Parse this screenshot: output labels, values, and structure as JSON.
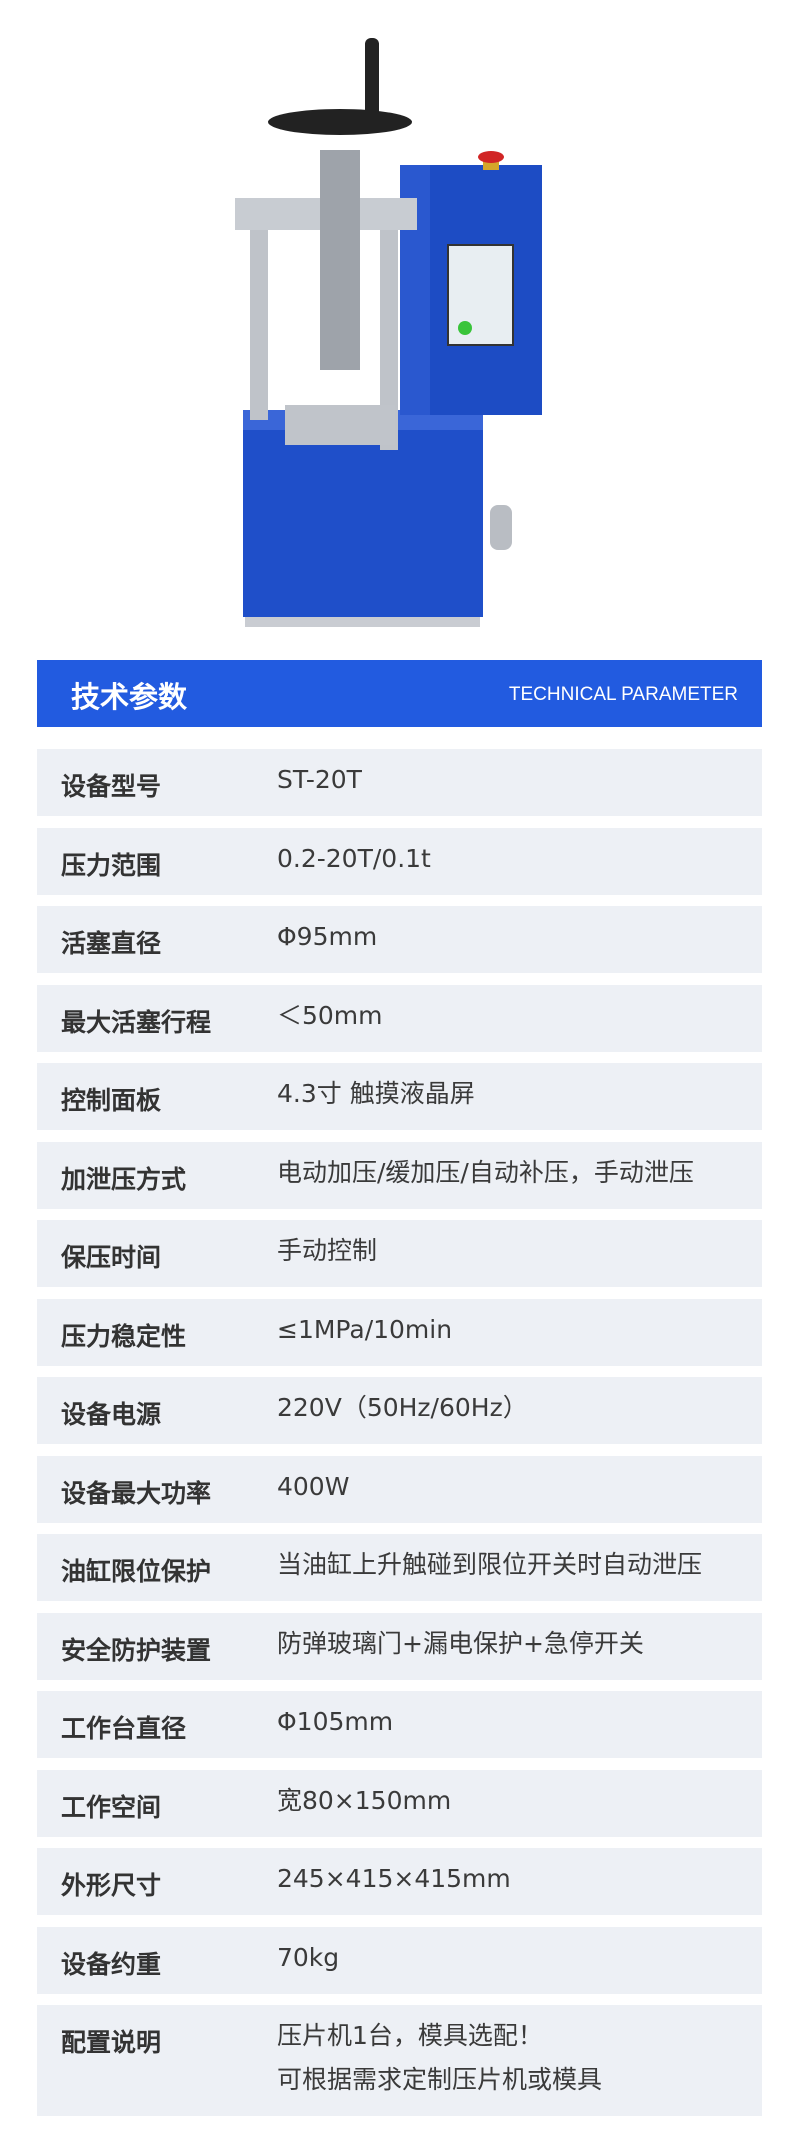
{
  "header": {
    "title": "技术参数",
    "subtitle": "TECHNICAL PARAMETER"
  },
  "colors": {
    "accent": "#225be0",
    "row_bg": "#edf0f5",
    "machine_blue": "#1f4fc9"
  },
  "params": [
    {
      "label": "设备型号",
      "value": "ST-20T"
    },
    {
      "label": "压力范围",
      "value": "0.2-20T/0.1t"
    },
    {
      "label": "活塞直径",
      "value": "Φ95mm"
    },
    {
      "label": "最大活塞行程",
      "value": "＜50mm"
    },
    {
      "label": "控制面板",
      "value": "4.3寸 触摸液晶屏"
    },
    {
      "label": "加泄压方式",
      "value": "电动加压/缓加压/自动补压，手动泄压"
    },
    {
      "label": "保压时间",
      "value": " 手动控制"
    },
    {
      "label": "压力稳定性",
      "value": "≤1MPa/10min"
    },
    {
      "label": "设备电源",
      "value": "220V（50Hz/60Hz）"
    },
    {
      "label": "设备最大功率",
      "value": "400W"
    },
    {
      "label": "油缸限位保护",
      "value": "当油缸上升触碰到限位开关时自动泄压"
    },
    {
      "label": "安全防护装置",
      "value": "防弹玻璃门+漏电保护+急停开关"
    },
    {
      "label": "工作台直径",
      "value": "Φ105mm"
    },
    {
      "label": "工作空间",
      "value": "宽80×150mm"
    },
    {
      "label": "外形尺寸",
      "value": "245×415×415mm"
    },
    {
      "label": "设备约重",
      "value": "70kg"
    },
    {
      "label": "配置说明",
      "value": "压片机1台，模具选配！",
      "value2": "可根据需求定制压片机或模具"
    }
  ]
}
